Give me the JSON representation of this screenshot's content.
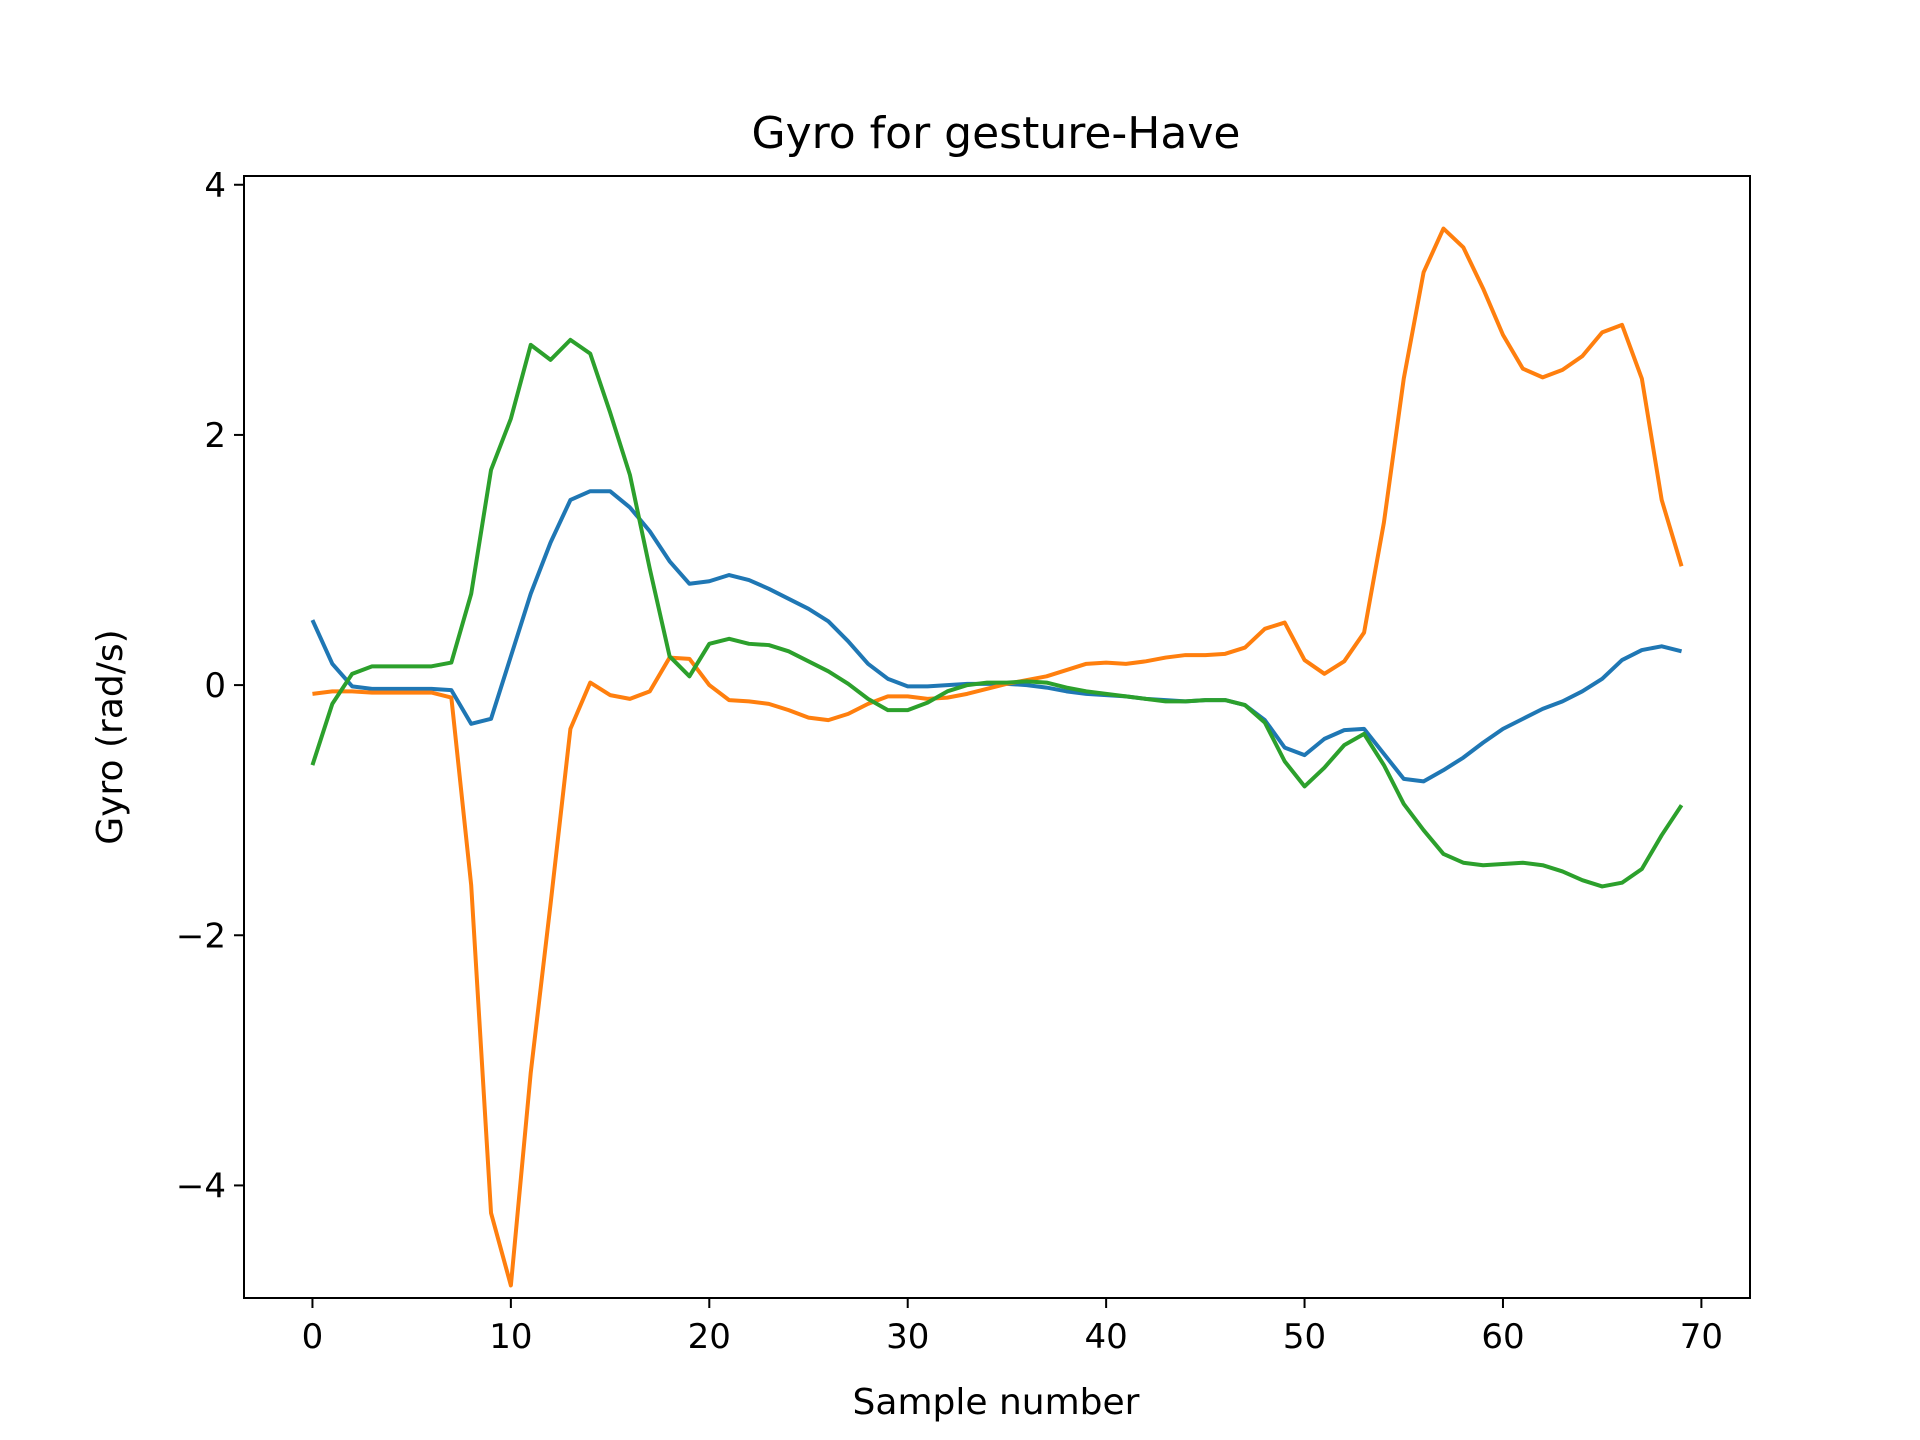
{
  "chart_data": {
    "type": "line",
    "title": "Gyro for gesture-Have",
    "xlabel": "Sample number",
    "ylabel": "Gyro  (rad/s)",
    "xlim": [
      -3.45,
      72.45
    ],
    "ylim": [
      -4.9,
      4.07
    ],
    "x_ticks": [
      0,
      10,
      20,
      30,
      40,
      50,
      60,
      70
    ],
    "y_ticks": [
      4,
      2,
      0,
      -2,
      -4
    ],
    "x_tick_labels": [
      "0",
      "10",
      "20",
      "30",
      "40",
      "50",
      "60",
      "70"
    ],
    "y_tick_labels": [
      "4",
      "2",
      "0",
      "−2",
      "−4"
    ],
    "grid": false,
    "x": [
      0,
      1,
      2,
      3,
      4,
      5,
      6,
      7,
      8,
      9,
      10,
      11,
      12,
      13,
      14,
      15,
      16,
      17,
      18,
      19,
      20,
      21,
      22,
      23,
      24,
      25,
      26,
      27,
      28,
      29,
      30,
      31,
      32,
      33,
      34,
      35,
      36,
      37,
      38,
      39,
      40,
      41,
      42,
      43,
      44,
      45,
      46,
      47,
      48,
      49,
      50,
      51,
      52,
      53,
      54,
      55,
      56,
      57,
      58,
      59,
      60,
      61,
      62,
      63,
      64,
      65,
      66,
      67,
      68,
      69
    ],
    "series": [
      {
        "color": "#1f77b4",
        "values": [
          0.52,
          0.17,
          -0.01,
          -0.03,
          -0.03,
          -0.03,
          -0.03,
          -0.04,
          -0.31,
          -0.27,
          0.23,
          0.73,
          1.14,
          1.48,
          1.55,
          1.55,
          1.42,
          1.23,
          0.99,
          0.81,
          0.83,
          0.88,
          0.84,
          0.77,
          0.69,
          0.61,
          0.51,
          0.35,
          0.17,
          0.05,
          -0.01,
          -0.01,
          0.0,
          0.01,
          0.01,
          0.01,
          0.0,
          -0.02,
          -0.05,
          -0.07,
          -0.08,
          -0.09,
          -0.11,
          -0.12,
          -0.13,
          -0.12,
          -0.12,
          -0.16,
          -0.28,
          -0.5,
          -0.56,
          -0.43,
          -0.36,
          -0.35,
          -0.55,
          -0.75,
          -0.77,
          -0.68,
          -0.58,
          -0.46,
          -0.35,
          -0.27,
          -0.19,
          -0.13,
          -0.05,
          0.05,
          0.2,
          0.28,
          0.31,
          0.27
        ]
      },
      {
        "color": "#ff7f0e",
        "values": [
          -0.07,
          -0.05,
          -0.05,
          -0.06,
          -0.06,
          -0.06,
          -0.06,
          -0.1,
          -1.6,
          -4.22,
          -4.8,
          -3.1,
          -1.75,
          -0.35,
          0.02,
          -0.08,
          -0.11,
          -0.05,
          0.22,
          0.21,
          0.0,
          -0.12,
          -0.13,
          -0.15,
          -0.2,
          -0.26,
          -0.28,
          -0.23,
          -0.15,
          -0.09,
          -0.09,
          -0.11,
          -0.1,
          -0.07,
          -0.03,
          0.01,
          0.04,
          0.07,
          0.12,
          0.17,
          0.18,
          0.17,
          0.19,
          0.22,
          0.24,
          0.24,
          0.25,
          0.3,
          0.45,
          0.5,
          0.2,
          0.09,
          0.19,
          0.42,
          1.3,
          2.45,
          3.3,
          3.65,
          3.5,
          3.17,
          2.8,
          2.53,
          2.46,
          2.52,
          2.63,
          2.82,
          2.88,
          2.45,
          1.48,
          0.95
        ]
      },
      {
        "color": "#2ca02c",
        "values": [
          -0.64,
          -0.15,
          0.09,
          0.15,
          0.15,
          0.15,
          0.15,
          0.18,
          0.73,
          1.72,
          2.13,
          2.72,
          2.6,
          2.76,
          2.65,
          2.18,
          1.68,
          0.93,
          0.23,
          0.07,
          0.33,
          0.37,
          0.33,
          0.32,
          0.27,
          0.19,
          0.11,
          0.01,
          -0.11,
          -0.2,
          -0.2,
          -0.14,
          -0.05,
          0.0,
          0.02,
          0.02,
          0.03,
          0.02,
          -0.02,
          -0.05,
          -0.07,
          -0.09,
          -0.11,
          -0.13,
          -0.13,
          -0.12,
          -0.12,
          -0.16,
          -0.3,
          -0.61,
          -0.81,
          -0.66,
          -0.48,
          -0.39,
          -0.64,
          -0.95,
          -1.16,
          -1.35,
          -1.42,
          -1.44,
          -1.43,
          -1.42,
          -1.44,
          -1.49,
          -1.56,
          -1.61,
          -1.58,
          -1.47,
          -1.2,
          -0.96
        ]
      }
    ]
  }
}
